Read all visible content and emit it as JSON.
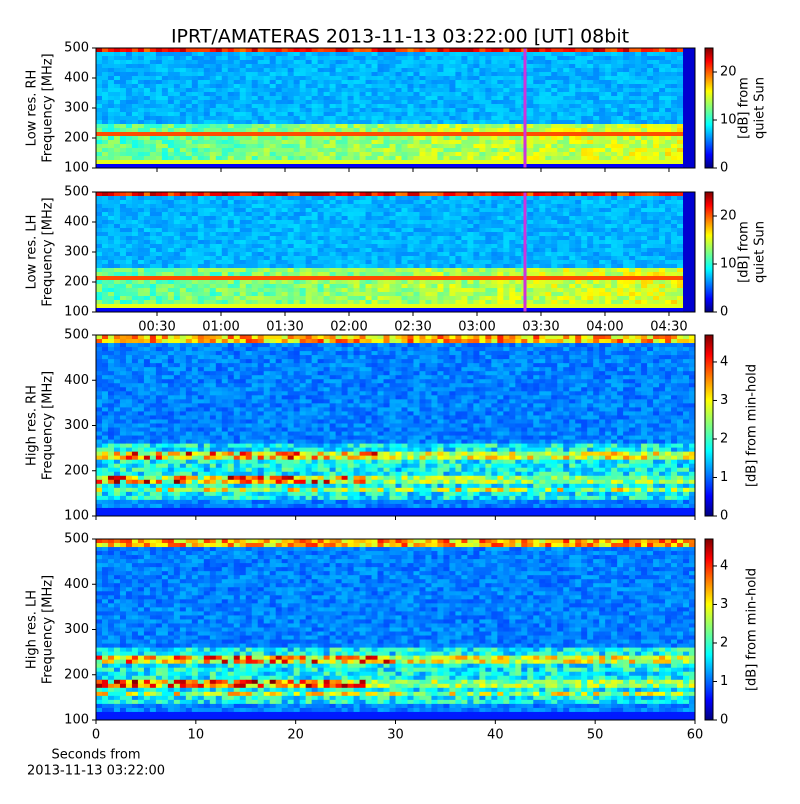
{
  "title": "IPRT/AMATERAS 2013-11-13 03:22:00 [UT]   08bit",
  "chart_data": [
    {
      "type": "heatmap",
      "ylabel": [
        "Low res. RH",
        "Frequency [MHz]"
      ],
      "ylim": [
        100,
        500
      ],
      "yticks": [
        100,
        200,
        300,
        400,
        500
      ],
      "xlim": [
        1.4,
        282.2
      ],
      "marker": 202.5,
      "marker_color": "#cc33dd",
      "colorbar": {
        "label": [
          "[dB] from",
          "quiet Sun"
        ],
        "lim": [
          0,
          25
        ],
        "ticks": [
          0,
          10,
          20
        ]
      }
    },
    {
      "type": "heatmap",
      "ylabel": [
        "Low res. LH",
        "Frequency [MHz]"
      ],
      "ylim": [
        100,
        500
      ],
      "yticks": [
        100,
        200,
        300,
        400,
        500
      ],
      "xlim": [
        1.4,
        282.2
      ],
      "marker": 202.5,
      "marker_color": "#cc33dd",
      "xticks": [
        {
          "value": 30,
          "label": "00:30"
        },
        {
          "value": 60,
          "label": "01:00"
        },
        {
          "value": 90,
          "label": "01:30"
        },
        {
          "value": 120,
          "label": "02:00"
        },
        {
          "value": 150,
          "label": "02:30"
        },
        {
          "value": 180,
          "label": "03:00"
        },
        {
          "value": 210,
          "label": "03:30"
        },
        {
          "value": 240,
          "label": "04:00"
        },
        {
          "value": 270,
          "label": "04:30"
        }
      ],
      "colorbar": {
        "label": [
          "[dB] from",
          "quiet Sun"
        ],
        "lim": [
          0,
          25
        ],
        "ticks": [
          0,
          10,
          20
        ]
      }
    },
    {
      "type": "heatmap",
      "ylabel": [
        "High res. RH",
        "Frequency [MHz]"
      ],
      "ylim": [
        100,
        500
      ],
      "yticks": [
        100,
        200,
        300,
        400,
        500
      ],
      "xlim": [
        0,
        60
      ],
      "colorbar": {
        "label": [
          "[dB] from min-hold"
        ],
        "lim": [
          0,
          4.7
        ],
        "ticks": [
          0,
          1,
          2,
          3,
          4
        ]
      }
    },
    {
      "type": "heatmap",
      "ylabel": [
        "High res. LH",
        "Frequency [MHz]"
      ],
      "ylim": [
        100,
        500
      ],
      "yticks": [
        100,
        200,
        300,
        400,
        500
      ],
      "xlim": [
        0,
        60
      ],
      "xticks": [
        0,
        10,
        20,
        30,
        40,
        50,
        60
      ],
      "xlabel": [
        "Seconds from",
        "2013-11-13 03:22:00"
      ],
      "colorbar": {
        "label": [
          "[dB] from min-hold"
        ],
        "lim": [
          0,
          4.7
        ],
        "ticks": [
          0,
          1,
          2,
          3,
          4
        ]
      }
    }
  ]
}
